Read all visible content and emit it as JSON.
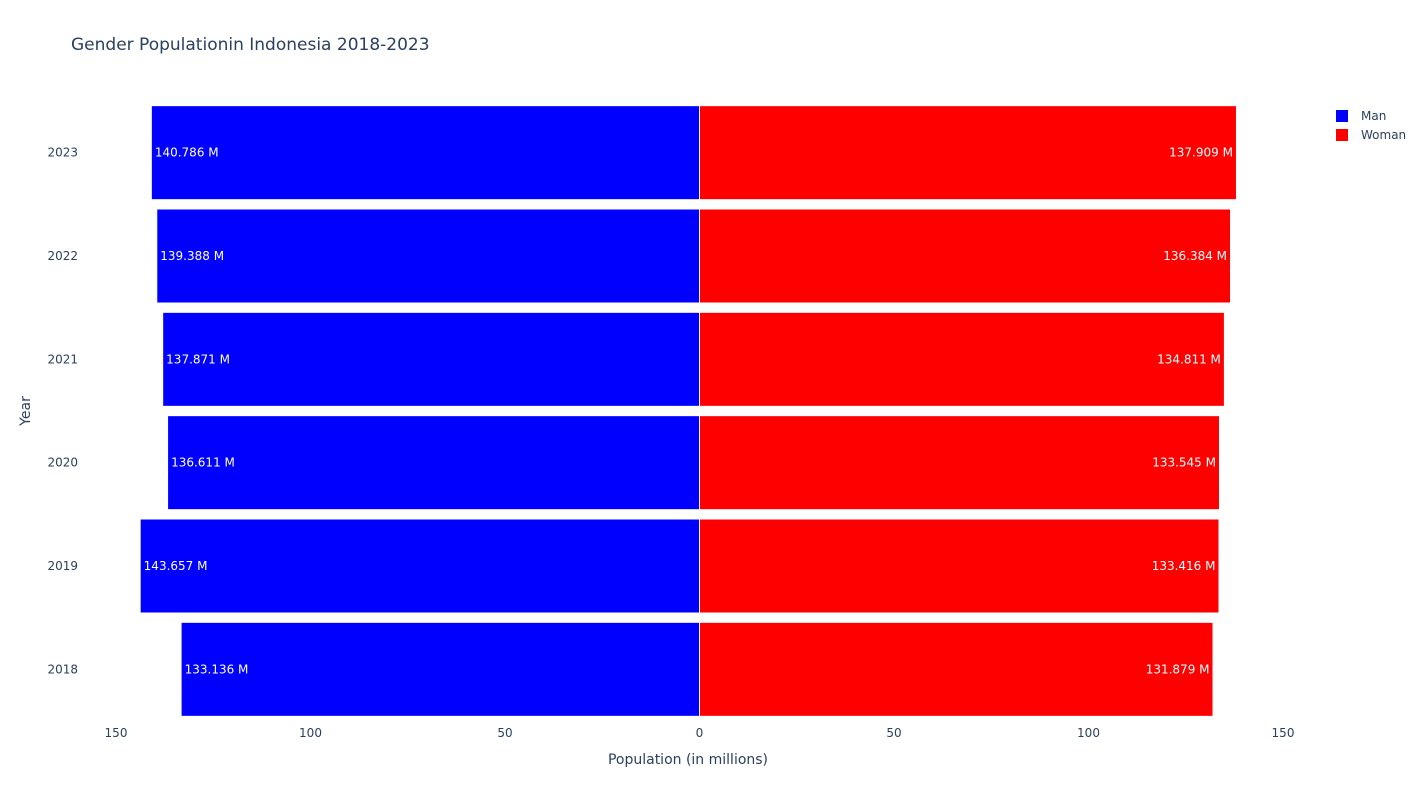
{
  "chart_data": {
    "type": "bar",
    "orientation": "horizontal",
    "title": "Gender Populationin Indonesia 2018-2023",
    "xlabel": "Population (in millions)",
    "ylabel": "Year",
    "categories": [
      "2018",
      "2019",
      "2020",
      "2021",
      "2022",
      "2023"
    ],
    "xlim": [
      -150,
      150
    ],
    "x_ticks": [
      -150,
      -100,
      -50,
      0,
      50,
      100,
      150
    ],
    "x_tick_labels": [
      "150",
      "100",
      "50",
      "0",
      "50",
      "100",
      "150"
    ],
    "grid": false,
    "legend_position": "top-right",
    "series": [
      {
        "name": "Man",
        "color": "#0000ff",
        "direction": "left",
        "values": [
          133.136,
          143.657,
          136.611,
          137.871,
          139.388,
          140.786
        ],
        "labels": [
          "133.136 M",
          "143.657 M",
          "136.611 M",
          "137.871 M",
          "139.388 M",
          "140.786 M"
        ]
      },
      {
        "name": "Woman",
        "color": "#ff0000",
        "direction": "right",
        "values": [
          131.879,
          133.416,
          133.545,
          134.811,
          136.384,
          137.909
        ],
        "labels": [
          "131.879 M",
          "133.416 M",
          "133.545 M",
          "134.811 M",
          "136.384 M",
          "137.909 M"
        ]
      }
    ]
  }
}
